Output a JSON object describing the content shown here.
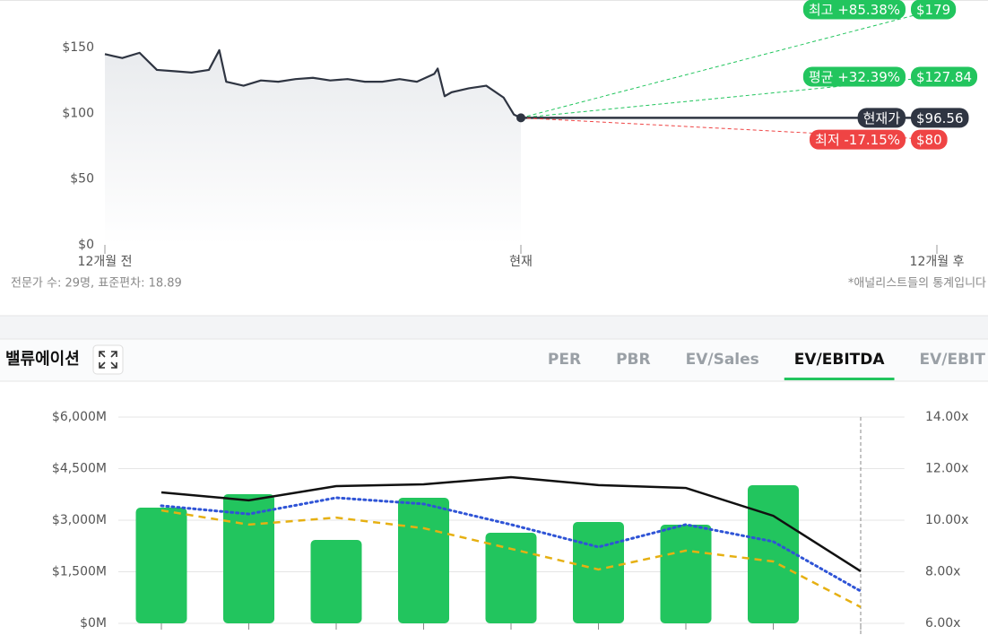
{
  "chart_data": [
    {
      "type": "line",
      "x": [
        0,
        0.5,
        1,
        1.5,
        2,
        2.5,
        3,
        3.3,
        3.5,
        4,
        4.5,
        5,
        5.5,
        6,
        6.5,
        7,
        7.5,
        8,
        8.5,
        9,
        9.5,
        9.6,
        9.8,
        10,
        10.5,
        11,
        11.5,
        11.8,
        12
      ],
      "series": [
        {
          "color": "#2f3542",
          "values": [
            145,
            142,
            146,
            133,
            132,
            131,
            133,
            148,
            124,
            121,
            125,
            124,
            126,
            127,
            125,
            126,
            124,
            124,
            126,
            124,
            130,
            134,
            113,
            116,
            119,
            121,
            112,
            99,
            96.56
          ]
        }
      ],
      "xlim": [
        0,
        24
      ],
      "xticks": [
        {
          "value": 0,
          "label": "12개월 전"
        },
        {
          "value": 12,
          "label": "현재"
        },
        {
          "value": 24,
          "label": "12개월 후"
        }
      ],
      "ylim": [
        0,
        150
      ],
      "yticks": [
        {
          "value": 0,
          "label": "$0"
        },
        {
          "value": 50,
          "label": "$50"
        },
        {
          "value": 100,
          "label": "$100"
        },
        {
          "value": 150,
          "label": "$150"
        }
      ],
      "targets": [
        {
          "label": "최고 +85.38%",
          "value": 179,
          "value_label": "$179",
          "color": "#22c55e",
          "dashed": true
        },
        {
          "label": "평균 +32.39%",
          "value": 127.84,
          "value_label": "$127.84",
          "color": "#22c55e",
          "dashed": true
        },
        {
          "label": "현재가",
          "value": 96.56,
          "value_label": "$96.56",
          "color": "#2f3542",
          "dashed": false
        },
        {
          "label": "최저 -17.15%",
          "value": 80,
          "value_label": "$80",
          "color": "#ef4444",
          "dashed": true
        }
      ],
      "notes": [
        "전문가 수: 29명, 표준편차: 18.89",
        "*애널리스트들의 통계입니다"
      ]
    },
    {
      "type": "combo",
      "categories": [
        null,
        null,
        null,
        null,
        null,
        null,
        null,
        null,
        null
      ],
      "series": [
        {
          "type": "bar",
          "color": "#22c55e",
          "values": [
            3365,
            3757,
            2426,
            3652,
            2635,
            2948,
            2870,
            4018,
            null
          ]
        },
        {
          "type": "line",
          "axis": "y2",
          "color": "#111111",
          "dash": "solid",
          "values": [
            11.08,
            10.77,
            11.32,
            11.39,
            11.67,
            11.36,
            11.25,
            10.17,
            8.02
          ]
        },
        {
          "type": "line",
          "axis": "y2",
          "color": "#2f54d6",
          "dash": "dotted",
          "values": [
            10.56,
            10.24,
            10.87,
            10.63,
            9.83,
            8.96,
            9.83,
            9.17,
            7.25
          ]
        },
        {
          "type": "line",
          "axis": "y2",
          "color": "#e6b012",
          "dash": "dashed",
          "values": [
            10.38,
            9.83,
            10.1,
            9.69,
            8.89,
            8.09,
            8.82,
            8.4,
            6.63
          ]
        }
      ],
      "ylim": [
        0,
        6000
      ],
      "yticks": [
        {
          "value": 0,
          "label": "$0M"
        },
        {
          "value": 1500,
          "label": "$1,500M"
        },
        {
          "value": 3000,
          "label": "$3,000M"
        },
        {
          "value": 4500,
          "label": "$4,500M"
        },
        {
          "value": 6000,
          "label": "$6,000M"
        }
      ],
      "y2lim": [
        6,
        14
      ],
      "y2ticks": [
        {
          "value": 6,
          "label": "6.00x"
        },
        {
          "value": 8,
          "label": "8.00x"
        },
        {
          "value": 10,
          "label": "10.00x"
        },
        {
          "value": 12,
          "label": "12.00x"
        },
        {
          "value": 14,
          "label": "14.00x"
        }
      ],
      "grid": true
    }
  ],
  "section": {
    "title": "밸류에이션",
    "tabs": [
      "PER",
      "PBR",
      "EV/Sales",
      "EV/EBITDA",
      "EV/EBIT"
    ],
    "active_tab": 3
  }
}
